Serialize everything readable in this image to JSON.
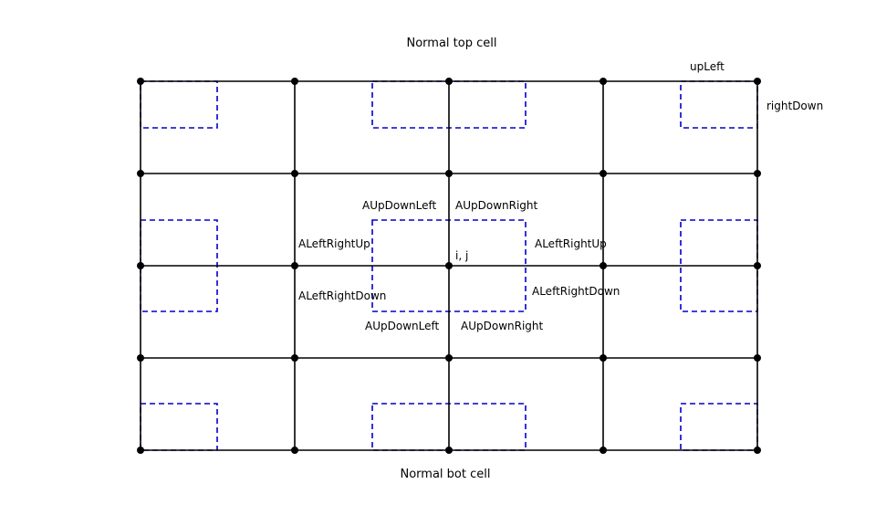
{
  "titles": {
    "top": "Normal top cell",
    "bottom": "Normal bot cell"
  },
  "labels": {
    "up_left": "upLeft",
    "right_down": "rightDown",
    "up_down_left_top": "AUpDownLeft",
    "up_down_right_top": "AUpDownRight",
    "left_right_up_left": "ALeftRightUp",
    "left_right_up_right": "ALeftRightUp",
    "center": "i, j",
    "left_right_down_left": "ALeftRightDown",
    "left_right_down_right": "ALeftRightDown",
    "up_down_left_bottom": "AUpDownLeft",
    "up_down_right_bottom": "AUpDownRight"
  },
  "colors": {
    "grid": "#000000",
    "dashed_boxes": "#0000cc",
    "nodes": "#000000"
  }
}
